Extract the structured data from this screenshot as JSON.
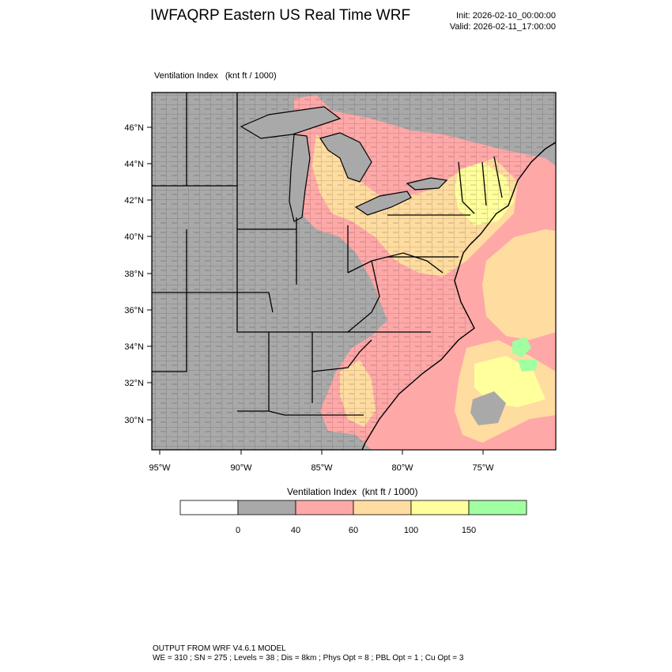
{
  "header": {
    "title": "IWFAQRP Eastern US Real Time WRF",
    "init": "Init: 2026-02-10_00:00:00",
    "valid": "Valid: 2026-02-11_17:00:00"
  },
  "map": {
    "field_label": "Ventilation Index   (knt ft / 1000)",
    "lat_ticks": [
      "46°N",
      "44°N",
      "42°N",
      "40°N",
      "38°N",
      "36°N",
      "34°N",
      "32°N",
      "30°N"
    ],
    "lon_ticks": [
      "95°W",
      "90°W",
      "85°W",
      "80°W",
      "75°W"
    ],
    "colors": {
      "land_gray": "#a9a9a9",
      "level_40_60": "#ffa8a8",
      "level_60_100": "#ffdca0",
      "level_100_150": "#ffff9c",
      "level_150_plus": "#a0ffa0"
    }
  },
  "legend": {
    "title": "Ventilation Index  (knt ft / 1000)",
    "colors": [
      "#ffffff",
      "#a9a9a9",
      "#ffa8a8",
      "#ffdca0",
      "#ffff9c",
      "#a0ffa0"
    ],
    "labels": [
      "0",
      "40",
      "60",
      "100",
      "150"
    ]
  },
  "footer": {
    "line1": "OUTPUT FROM WRF V4.6.1 MODEL",
    "line2": "WE = 310 ; SN = 275 ; Levels = 38 ; Dis = 8km ; Phys Opt = 8 ; PBL Opt = 1 ; Cu Opt = 3"
  }
}
